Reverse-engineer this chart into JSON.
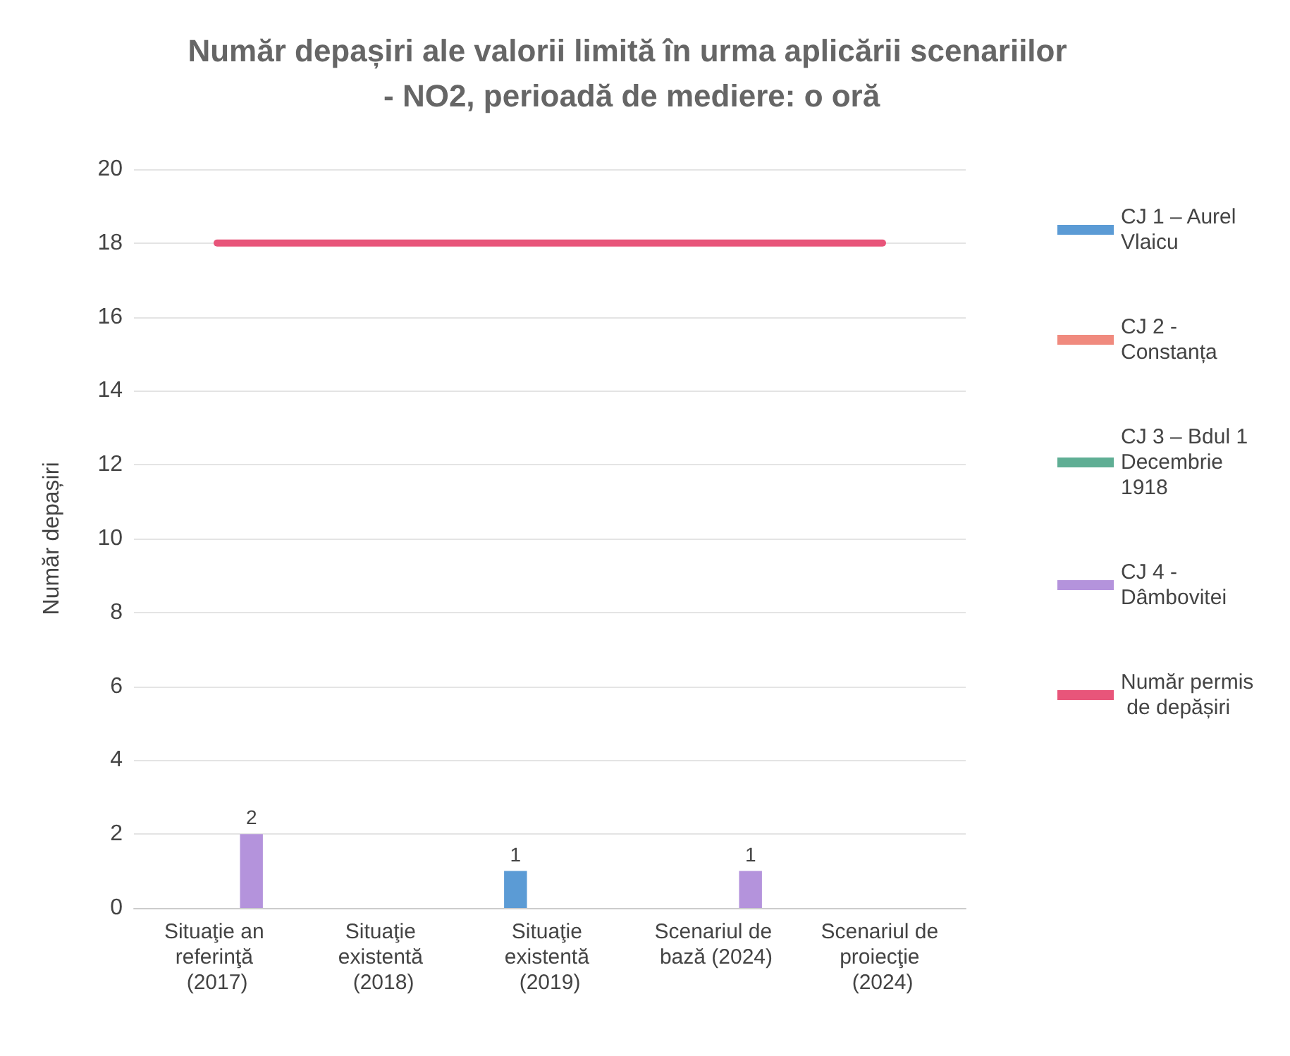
{
  "chart_data": {
    "type": "bar",
    "title": "Număr depașiri ale valorii limită în urma aplicării scenariilor - NO2, perioadă de mediere: o oră",
    "ylabel": "Număr depașiri",
    "categories": [
      "Situaţie an referinţă (2017)",
      "Situaţie existentă (2018)",
      "Situaţie existentă (2019)",
      "Scenariul de bază (2024)",
      "Scenariul de proiecţie (2024)"
    ],
    "series": [
      {
        "name": "CJ 1 – Aurel Vlaicu",
        "color": "#5b9bd5",
        "values": [
          0,
          0,
          1,
          0,
          0
        ],
        "value_labels": [
          null,
          null,
          "1",
          null,
          null
        ]
      },
      {
        "name": "CJ 2 - Constanța",
        "color": "#f08a7e",
        "values": [
          0,
          0,
          0,
          0,
          0
        ]
      },
      {
        "name": "CJ 3 – Bdul 1 Decembrie 1918",
        "color": "#5fae94",
        "values": [
          0,
          0,
          0,
          0,
          0
        ]
      },
      {
        "name": "CJ 4 - Dâmbovitei",
        "color": "#b493dc",
        "values": [
          2,
          0,
          0,
          1,
          0
        ],
        "value_labels": [
          "2",
          null,
          null,
          "1",
          null
        ]
      },
      {
        "name": "Număr permis de depășiri",
        "type": "line",
        "color": "#e8557a",
        "values": [
          18,
          18,
          18,
          18,
          18
        ]
      }
    ],
    "ylim": [
      0,
      20
    ],
    "yticks": [
      0,
      2,
      4,
      6,
      8,
      10,
      12,
      14,
      16,
      18,
      20
    ],
    "grid": "y",
    "legend": "right",
    "marker": "none"
  }
}
